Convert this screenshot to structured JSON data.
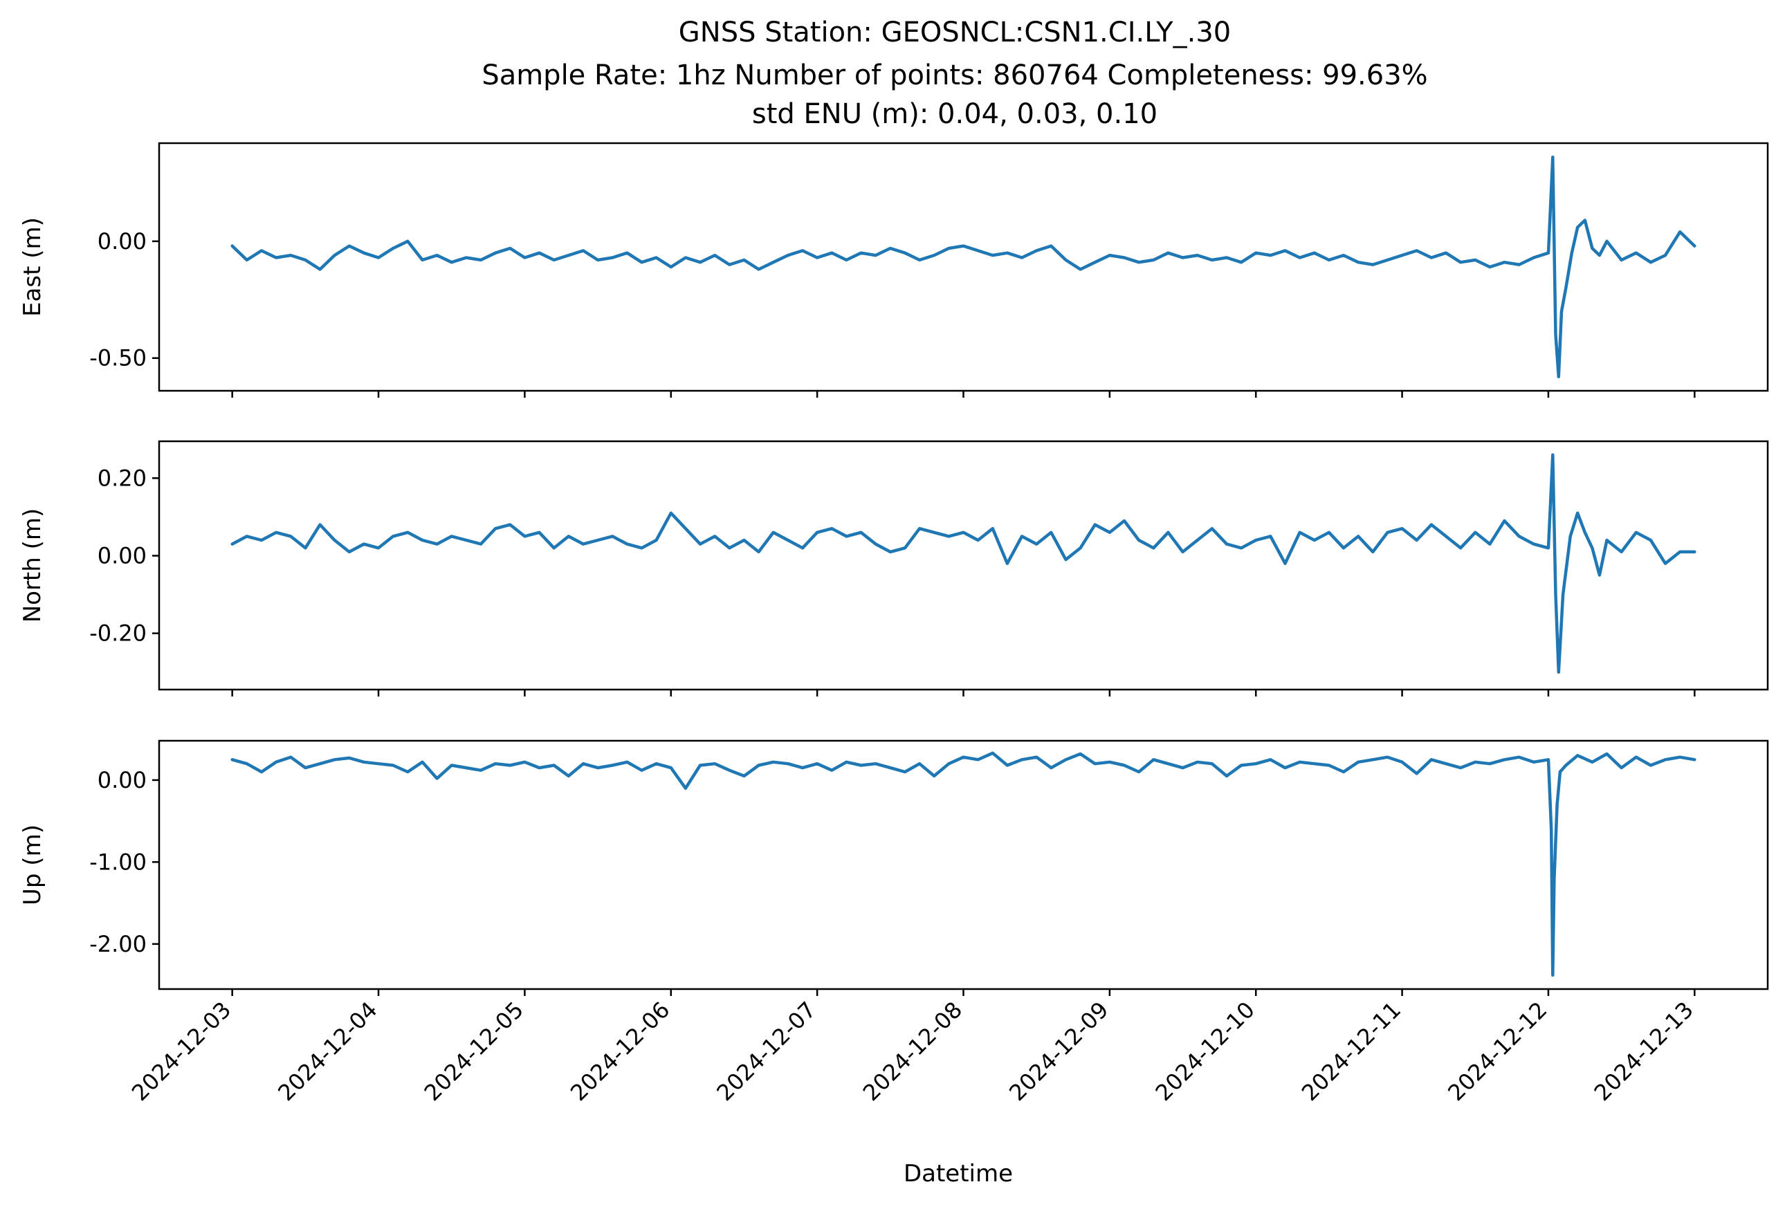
{
  "figure": {
    "title_lines": [
      "GNSS Station: GEOSNCL:CSN1.CI.LY_.30",
      "Sample Rate: 1hz   Number of points: 860764    Completeness:  99.63%",
      "std ENU (m):  0.04, 0.03, 0.10"
    ],
    "xlabel": "Datetime",
    "line_color": "#1f77b4"
  },
  "chart_data": [
    {
      "type": "line",
      "name": "east",
      "ylabel": "East (m)",
      "x_ticks": [
        "2024-12-03",
        "2024-12-04",
        "2024-12-05",
        "2024-12-06",
        "2024-12-07",
        "2024-12-08",
        "2024-12-09",
        "2024-12-10",
        "2024-12-11",
        "2024-12-12",
        "2024-12-13"
      ],
      "x_tick_labels_shown": false,
      "xlim_days": [
        -0.5,
        10.5
      ],
      "ylim": [
        -0.64,
        0.42
      ],
      "y_ticks": [
        0.0,
        -0.5
      ],
      "y_tick_labels": [
        "0.00",
        "-0.50"
      ],
      "x_days": [
        0.0,
        0.1,
        0.2,
        0.3,
        0.4,
        0.5,
        0.6,
        0.7,
        0.8,
        0.9,
        1.0,
        1.1,
        1.2,
        1.3,
        1.4,
        1.5,
        1.6,
        1.7,
        1.8,
        1.9,
        2.0,
        2.1,
        2.2,
        2.3,
        2.4,
        2.5,
        2.6,
        2.7,
        2.8,
        2.9,
        3.0,
        3.1,
        3.2,
        3.3,
        3.4,
        3.5,
        3.6,
        3.7,
        3.8,
        3.9,
        4.0,
        4.1,
        4.2,
        4.3,
        4.4,
        4.5,
        4.6,
        4.7,
        4.8,
        4.9,
        5.0,
        5.1,
        5.2,
        5.3,
        5.4,
        5.5,
        5.6,
        5.7,
        5.8,
        5.9,
        6.0,
        6.1,
        6.2,
        6.3,
        6.4,
        6.5,
        6.6,
        6.7,
        6.8,
        6.9,
        7.0,
        7.1,
        7.2,
        7.3,
        7.4,
        7.5,
        7.6,
        7.7,
        7.8,
        7.9,
        8.0,
        8.1,
        8.2,
        8.3,
        8.4,
        8.5,
        8.6,
        8.7,
        8.8,
        8.9,
        9.0,
        9.03,
        9.05,
        9.07,
        9.09,
        9.12,
        9.16,
        9.2,
        9.25,
        9.3,
        9.35,
        9.4,
        9.5,
        9.6,
        9.7,
        9.8,
        9.9,
        10.0
      ],
      "y": [
        -0.02,
        -0.08,
        -0.04,
        -0.07,
        -0.06,
        -0.08,
        -0.12,
        -0.06,
        -0.02,
        -0.05,
        -0.07,
        -0.03,
        0.0,
        -0.08,
        -0.06,
        -0.09,
        -0.07,
        -0.08,
        -0.05,
        -0.03,
        -0.07,
        -0.05,
        -0.08,
        -0.06,
        -0.04,
        -0.08,
        -0.07,
        -0.05,
        -0.09,
        -0.07,
        -0.11,
        -0.07,
        -0.09,
        -0.06,
        -0.1,
        -0.08,
        -0.12,
        -0.09,
        -0.06,
        -0.04,
        -0.07,
        -0.05,
        -0.08,
        -0.05,
        -0.06,
        -0.03,
        -0.05,
        -0.08,
        -0.06,
        -0.03,
        -0.02,
        -0.04,
        -0.06,
        -0.05,
        -0.07,
        -0.04,
        -0.02,
        -0.08,
        -0.12,
        -0.09,
        -0.06,
        -0.07,
        -0.09,
        -0.08,
        -0.05,
        -0.07,
        -0.06,
        -0.08,
        -0.07,
        -0.09,
        -0.05,
        -0.06,
        -0.04,
        -0.07,
        -0.05,
        -0.08,
        -0.06,
        -0.09,
        -0.1,
        -0.08,
        -0.06,
        -0.04,
        -0.07,
        -0.05,
        -0.09,
        -0.08,
        -0.11,
        -0.09,
        -0.1,
        -0.07,
        -0.05,
        0.36,
        -0.4,
        -0.58,
        -0.3,
        -0.2,
        -0.05,
        0.06,
        0.09,
        -0.03,
        -0.06,
        0.0,
        -0.08,
        -0.05,
        -0.09,
        -0.06,
        0.04,
        -0.02
      ]
    },
    {
      "type": "line",
      "name": "north",
      "ylabel": "North (m)",
      "x_ticks": [
        "2024-12-03",
        "2024-12-04",
        "2024-12-05",
        "2024-12-06",
        "2024-12-07",
        "2024-12-08",
        "2024-12-09",
        "2024-12-10",
        "2024-12-11",
        "2024-12-12",
        "2024-12-13"
      ],
      "x_tick_labels_shown": false,
      "xlim_days": [
        -0.5,
        10.5
      ],
      "ylim": [
        -0.345,
        0.295
      ],
      "y_ticks": [
        0.2,
        0.0,
        -0.2
      ],
      "y_tick_labels": [
        "0.20",
        "0.00",
        "-0.20"
      ],
      "x_days": [
        0.0,
        0.1,
        0.2,
        0.3,
        0.4,
        0.5,
        0.6,
        0.7,
        0.8,
        0.9,
        1.0,
        1.1,
        1.2,
        1.3,
        1.4,
        1.5,
        1.6,
        1.7,
        1.8,
        1.9,
        2.0,
        2.1,
        2.2,
        2.3,
        2.4,
        2.5,
        2.6,
        2.7,
        2.8,
        2.9,
        3.0,
        3.1,
        3.2,
        3.3,
        3.4,
        3.5,
        3.6,
        3.7,
        3.8,
        3.9,
        4.0,
        4.1,
        4.2,
        4.3,
        4.4,
        4.5,
        4.6,
        4.7,
        4.8,
        4.9,
        5.0,
        5.1,
        5.2,
        5.3,
        5.4,
        5.5,
        5.6,
        5.7,
        5.8,
        5.9,
        6.0,
        6.1,
        6.2,
        6.3,
        6.4,
        6.5,
        6.6,
        6.7,
        6.8,
        6.9,
        7.0,
        7.1,
        7.2,
        7.3,
        7.4,
        7.5,
        7.6,
        7.7,
        7.8,
        7.9,
        8.0,
        8.1,
        8.2,
        8.3,
        8.4,
        8.5,
        8.6,
        8.7,
        8.8,
        8.9,
        9.0,
        9.03,
        9.05,
        9.07,
        9.1,
        9.15,
        9.2,
        9.25,
        9.3,
        9.35,
        9.4,
        9.5,
        9.6,
        9.7,
        9.8,
        9.9,
        10.0
      ],
      "y": [
        0.03,
        0.05,
        0.04,
        0.06,
        0.05,
        0.02,
        0.08,
        0.04,
        0.01,
        0.03,
        0.02,
        0.05,
        0.06,
        0.04,
        0.03,
        0.05,
        0.04,
        0.03,
        0.07,
        0.08,
        0.05,
        0.06,
        0.02,
        0.05,
        0.03,
        0.04,
        0.05,
        0.03,
        0.02,
        0.04,
        0.11,
        0.07,
        0.03,
        0.05,
        0.02,
        0.04,
        0.01,
        0.06,
        0.04,
        0.02,
        0.06,
        0.07,
        0.05,
        0.06,
        0.03,
        0.01,
        0.02,
        0.07,
        0.06,
        0.05,
        0.06,
        0.04,
        0.07,
        -0.02,
        0.05,
        0.03,
        0.06,
        -0.01,
        0.02,
        0.08,
        0.06,
        0.09,
        0.04,
        0.02,
        0.06,
        0.01,
        0.04,
        0.07,
        0.03,
        0.02,
        0.04,
        0.05,
        -0.02,
        0.06,
        0.04,
        0.06,
        0.02,
        0.05,
        0.01,
        0.06,
        0.07,
        0.04,
        0.08,
        0.05,
        0.02,
        0.06,
        0.03,
        0.09,
        0.05,
        0.03,
        0.02,
        0.26,
        -0.1,
        -0.3,
        -0.1,
        0.05,
        0.11,
        0.06,
        0.02,
        -0.05,
        0.04,
        0.01,
        0.06,
        0.04,
        -0.02,
        0.01,
        0.01
      ]
    },
    {
      "type": "line",
      "name": "up",
      "ylabel": "Up (m)",
      "x_ticks": [
        "2024-12-03",
        "2024-12-04",
        "2024-12-05",
        "2024-12-06",
        "2024-12-07",
        "2024-12-08",
        "2024-12-09",
        "2024-12-10",
        "2024-12-11",
        "2024-12-12",
        "2024-12-13"
      ],
      "x_tick_labels": [
        "2024-12-03",
        "2024-12-04",
        "2024-12-05",
        "2024-12-06",
        "2024-12-07",
        "2024-12-08",
        "2024-12-09",
        "2024-12-10",
        "2024-12-11",
        "2024-12-12",
        "2024-12-13"
      ],
      "xlim_days": [
        -0.5,
        10.5
      ],
      "ylim": [
        -2.55,
        0.48
      ],
      "y_ticks": [
        0.0,
        -1.0,
        -2.0
      ],
      "y_tick_labels": [
        "0.00",
        "-1.00",
        "-2.00"
      ],
      "x_days": [
        0.0,
        0.1,
        0.2,
        0.3,
        0.4,
        0.5,
        0.6,
        0.7,
        0.8,
        0.9,
        1.0,
        1.1,
        1.2,
        1.3,
        1.4,
        1.5,
        1.6,
        1.7,
        1.8,
        1.9,
        2.0,
        2.1,
        2.2,
        2.3,
        2.4,
        2.5,
        2.6,
        2.7,
        2.8,
        2.9,
        3.0,
        3.1,
        3.2,
        3.3,
        3.4,
        3.5,
        3.6,
        3.7,
        3.8,
        3.9,
        4.0,
        4.1,
        4.2,
        4.3,
        4.4,
        4.5,
        4.6,
        4.7,
        4.8,
        4.9,
        5.0,
        5.1,
        5.2,
        5.3,
        5.4,
        5.5,
        5.6,
        5.7,
        5.8,
        5.9,
        6.0,
        6.1,
        6.2,
        6.3,
        6.4,
        6.5,
        6.6,
        6.7,
        6.8,
        6.9,
        7.0,
        7.1,
        7.2,
        7.3,
        7.4,
        7.5,
        7.6,
        7.7,
        7.8,
        7.9,
        8.0,
        8.1,
        8.2,
        8.3,
        8.4,
        8.5,
        8.6,
        8.7,
        8.8,
        8.9,
        9.0,
        9.02,
        9.03,
        9.04,
        9.06,
        9.08,
        9.12,
        9.2,
        9.3,
        9.4,
        9.5,
        9.6,
        9.7,
        9.8,
        9.9,
        10.0
      ],
      "y": [
        0.25,
        0.2,
        0.1,
        0.22,
        0.28,
        0.15,
        0.2,
        0.25,
        0.27,
        0.22,
        0.2,
        0.18,
        0.1,
        0.22,
        0.02,
        0.18,
        0.15,
        0.12,
        0.2,
        0.18,
        0.22,
        0.15,
        0.18,
        0.05,
        0.2,
        0.15,
        0.18,
        0.22,
        0.12,
        0.2,
        0.15,
        -0.1,
        0.18,
        0.2,
        0.12,
        0.05,
        0.18,
        0.22,
        0.2,
        0.15,
        0.2,
        0.12,
        0.22,
        0.18,
        0.2,
        0.15,
        0.1,
        0.2,
        0.05,
        0.2,
        0.28,
        0.25,
        0.33,
        0.18,
        0.25,
        0.28,
        0.15,
        0.25,
        0.32,
        0.2,
        0.22,
        0.18,
        0.1,
        0.25,
        0.2,
        0.15,
        0.22,
        0.2,
        0.05,
        0.18,
        0.2,
        0.25,
        0.15,
        0.22,
        0.2,
        0.18,
        0.1,
        0.22,
        0.25,
        0.28,
        0.22,
        0.08,
        0.25,
        0.2,
        0.15,
        0.22,
        0.2,
        0.25,
        0.28,
        0.22,
        0.25,
        -0.6,
        -2.38,
        -1.2,
        -0.3,
        0.1,
        0.18,
        0.3,
        0.22,
        0.32,
        0.15,
        0.28,
        0.18,
        0.25,
        0.28,
        0.25
      ]
    }
  ]
}
